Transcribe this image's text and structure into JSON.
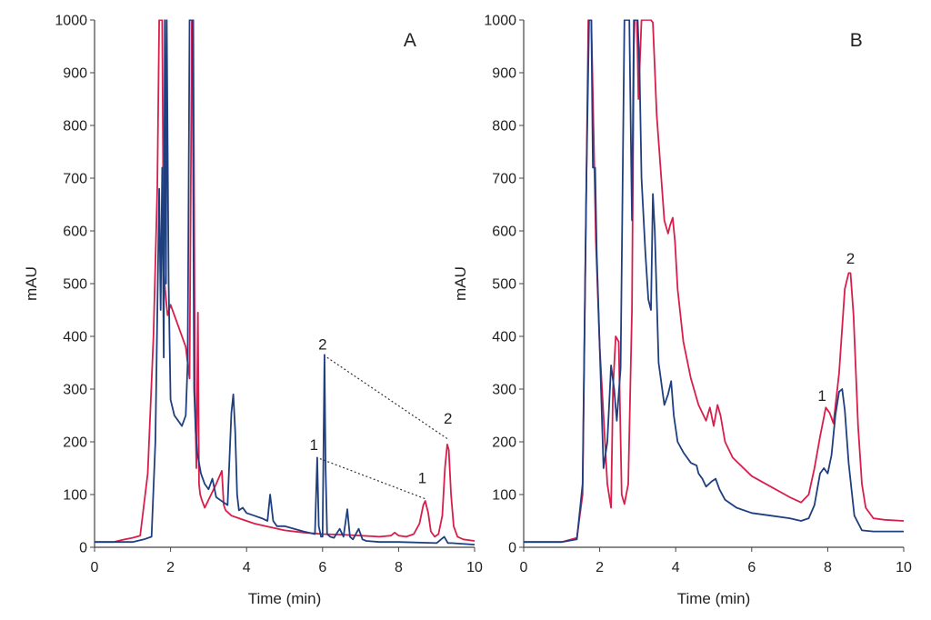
{
  "colors": {
    "red_series": "#d81e4b",
    "blue_series": "#1f3f7f",
    "axis": "#444444",
    "connector": "#333333"
  },
  "chart_data": [
    {
      "type": "line",
      "panel": "A",
      "xlabel": "Time (min)",
      "ylabel": "mAU",
      "xlim": [
        0,
        10
      ],
      "ylim": [
        0,
        1000
      ],
      "x_ticks": [
        0,
        2,
        4,
        6,
        8,
        10
      ],
      "y_ticks": [
        0,
        100,
        200,
        300,
        400,
        500,
        600,
        700,
        800,
        900,
        1000
      ],
      "grid": false,
      "series": [
        {
          "color": "#d81e4b",
          "x": [
            0,
            0.5,
            0.8,
            1.0,
            1.2,
            1.4,
            1.55,
            1.65,
            1.7,
            1.75,
            1.78,
            1.82,
            1.88,
            1.92,
            2.0,
            2.2,
            2.4,
            2.5,
            2.56,
            2.6,
            2.64,
            2.68,
            2.72,
            2.75,
            2.78,
            2.82,
            2.9,
            3.0,
            3.2,
            3.35,
            3.4,
            3.45,
            3.6,
            3.8,
            4.0,
            4.2,
            4.5,
            5.0,
            5.5,
            6.0,
            6.5,
            7.0,
            7.5,
            7.8,
            7.9,
            8.0,
            8.2,
            8.4,
            8.55,
            8.65,
            8.7,
            8.78,
            8.85,
            8.95,
            9.05,
            9.15,
            9.22,
            9.28,
            9.32,
            9.38,
            9.45,
            9.55,
            9.7,
            10
          ],
          "y": [
            10,
            10,
            15,
            18,
            22,
            140,
            400,
            680,
            1000,
            1000,
            1000,
            520,
            470,
            440,
            460,
            420,
            380,
            320,
            1000,
            1000,
            300,
            150,
            445,
            120,
            100,
            90,
            75,
            90,
            120,
            145,
            80,
            70,
            60,
            55,
            50,
            45,
            40,
            32,
            28,
            25,
            24,
            22,
            20,
            22,
            28,
            22,
            20,
            25,
            45,
            80,
            88,
            65,
            30,
            20,
            25,
            60,
            150,
            195,
            185,
            100,
            40,
            20,
            15,
            12
          ]
        },
        {
          "color": "#1f3f7f",
          "x": [
            0,
            1.0,
            1.3,
            1.5,
            1.6,
            1.7,
            1.74,
            1.78,
            1.82,
            1.85,
            1.88,
            1.9,
            1.95,
            2.0,
            2.1,
            2.2,
            2.3,
            2.4,
            2.45,
            2.5,
            2.52,
            2.55,
            2.58,
            2.62,
            2.66,
            2.7,
            2.75,
            2.8,
            2.9,
            3.0,
            3.1,
            3.2,
            3.3,
            3.4,
            3.5,
            3.6,
            3.65,
            3.7,
            3.75,
            3.8,
            3.9,
            4.0,
            4.2,
            4.4,
            4.55,
            4.62,
            4.7,
            4.8,
            5.0,
            5.5,
            5.8,
            5.86,
            5.9,
            5.96,
            6.0,
            6.05,
            6.08,
            6.12,
            6.2,
            6.3,
            6.45,
            6.55,
            6.65,
            6.72,
            6.8,
            6.95,
            7.05,
            7.15,
            7.5,
            8.0,
            9.0,
            9.2,
            9.3,
            9.4,
            10
          ],
          "y": [
            10,
            10,
            15,
            20,
            200,
            680,
            450,
            720,
            360,
            1000,
            500,
            1000,
            500,
            280,
            250,
            240,
            230,
            250,
            350,
            1000,
            1000,
            1000,
            1000,
            300,
            220,
            180,
            160,
            140,
            120,
            110,
            130,
            95,
            90,
            85,
            80,
            255,
            290,
            220,
            100,
            70,
            75,
            65,
            60,
            55,
            50,
            100,
            50,
            40,
            40,
            30,
            25,
            170,
            40,
            20,
            20,
            365,
            150,
            25,
            20,
            18,
            35,
            20,
            72,
            20,
            15,
            35,
            15,
            12,
            10,
            10,
            8,
            20,
            8,
            8,
            5
          ]
        }
      ],
      "annotations": [
        {
          "text": "A",
          "x": 8.3,
          "y": 960
        },
        {
          "text": "1",
          "x": 5.77,
          "y": 195
        },
        {
          "text": "2",
          "x": 6.0,
          "y": 385
        },
        {
          "text": "1",
          "x": 8.62,
          "y": 132
        },
        {
          "text": "2",
          "x": 9.3,
          "y": 245
        }
      ],
      "connectors": [
        {
          "from": [
            6.12,
            360
          ],
          "to": [
            9.3,
            205
          ]
        },
        {
          "from": [
            5.93,
            168
          ],
          "to": [
            8.7,
            92
          ]
        }
      ]
    },
    {
      "type": "line",
      "panel": "B",
      "xlabel": "Time (min)",
      "ylabel": "mAU",
      "xlim": [
        0,
        10
      ],
      "ylim": [
        0,
        1000
      ],
      "x_ticks": [
        0,
        2,
        4,
        6,
        8,
        10
      ],
      "y_ticks": [
        0,
        100,
        200,
        300,
        400,
        500,
        600,
        700,
        800,
        900,
        1000
      ],
      "grid": false,
      "series": [
        {
          "color": "#d81e4b",
          "x": [
            0,
            1.0,
            1.4,
            1.55,
            1.7,
            1.78,
            1.9,
            2.0,
            2.1,
            2.2,
            2.3,
            2.35,
            2.42,
            2.5,
            2.58,
            2.65,
            2.75,
            2.85,
            2.9,
            2.92,
            2.95,
            2.98,
            3.02,
            3.1,
            3.2,
            3.3,
            3.35,
            3.4,
            3.5,
            3.6,
            3.7,
            3.8,
            3.85,
            3.92,
            3.98,
            4.05,
            4.2,
            4.4,
            4.6,
            4.8,
            4.9,
            5.0,
            5.1,
            5.18,
            5.3,
            5.5,
            6.0,
            6.5,
            7.0,
            7.3,
            7.5,
            7.65,
            7.8,
            7.95,
            8.05,
            8.15,
            8.3,
            8.45,
            8.55,
            8.6,
            8.68,
            8.8,
            8.9,
            9.0,
            9.2,
            9.5,
            10
          ],
          "y": [
            10,
            10,
            18,
            100,
            1000,
            1000,
            580,
            380,
            250,
            120,
            75,
            300,
            400,
            390,
            100,
            82,
            120,
            450,
            950,
            1000,
            1000,
            1000,
            850,
            1000,
            1000,
            1000,
            1000,
            995,
            820,
            720,
            620,
            595,
            610,
            625,
            580,
            490,
            390,
            320,
            270,
            240,
            265,
            230,
            270,
            250,
            200,
            170,
            135,
            115,
            95,
            85,
            100,
            150,
            210,
            265,
            255,
            235,
            330,
            490,
            520,
            520,
            440,
            230,
            120,
            75,
            55,
            52,
            50
          ]
        },
        {
          "color": "#1f3f7f",
          "x": [
            0,
            1.0,
            1.4,
            1.55,
            1.65,
            1.72,
            1.78,
            1.82,
            1.88,
            1.92,
            2.0,
            2.1,
            2.2,
            2.3,
            2.38,
            2.45,
            2.55,
            2.65,
            2.72,
            2.78,
            2.85,
            2.9,
            2.95,
            3.0,
            3.05,
            3.1,
            3.2,
            3.28,
            3.35,
            3.4,
            3.45,
            3.55,
            3.7,
            3.8,
            3.88,
            3.95,
            4.05,
            4.2,
            4.4,
            4.55,
            4.6,
            4.7,
            4.8,
            4.95,
            5.05,
            5.15,
            5.3,
            5.6,
            6.0,
            6.5,
            7.0,
            7.3,
            7.5,
            7.65,
            7.8,
            7.9,
            8.0,
            8.1,
            8.2,
            8.3,
            8.38,
            8.45,
            8.55,
            8.7,
            8.9,
            9.2,
            9.6,
            10
          ],
          "y": [
            10,
            10,
            15,
            120,
            700,
            1000,
            1000,
            720,
            720,
            560,
            380,
            150,
            200,
            345,
            300,
            240,
            340,
            1000,
            1000,
            1000,
            620,
            1000,
            1000,
            1000,
            900,
            700,
            560,
            470,
            450,
            670,
            600,
            350,
            270,
            290,
            315,
            250,
            200,
            180,
            160,
            155,
            140,
            130,
            115,
            125,
            130,
            110,
            90,
            75,
            65,
            60,
            55,
            50,
            55,
            80,
            140,
            150,
            140,
            175,
            250,
            295,
            300,
            260,
            160,
            60,
            32,
            30,
            30,
            30
          ]
        }
      ],
      "annotations": [
        {
          "text": "B",
          "x": 8.75,
          "y": 960
        },
        {
          "text": "1",
          "x": 7.85,
          "y": 288
        },
        {
          "text": "2",
          "x": 8.6,
          "y": 548
        }
      ],
      "connectors": []
    }
  ]
}
